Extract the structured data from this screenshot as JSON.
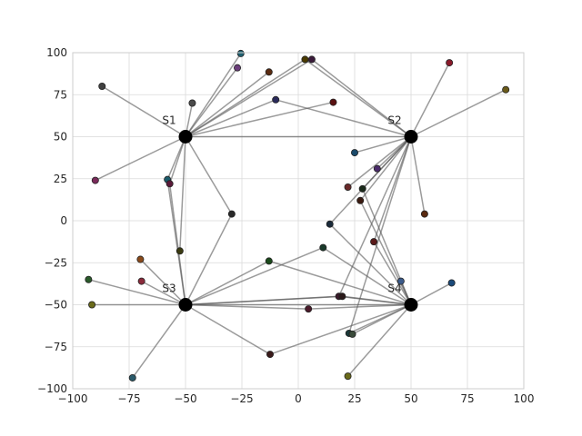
{
  "chart_data": {
    "type": "scatter",
    "title": "",
    "xlabel": "",
    "ylabel": "",
    "xlim": [
      -100,
      100
    ],
    "ylim": [
      -100,
      100
    ],
    "grid": true,
    "xticks": [
      -100,
      -75,
      -50,
      -25,
      0,
      25,
      50,
      75,
      100
    ],
    "yticks": [
      -100,
      -75,
      -50,
      -25,
      0,
      25,
      50,
      75,
      100
    ],
    "xtick_labels": [
      "−100",
      "−75",
      "−50",
      "−25",
      "0",
      "25",
      "50",
      "75",
      "100"
    ],
    "ytick_labels": [
      "−100",
      "−75",
      "−50",
      "−25",
      "0",
      "25",
      "50",
      "75",
      "100"
    ],
    "stations": [
      {
        "name": "S1",
        "x": -50,
        "y": 50
      },
      {
        "name": "S2",
        "x": 50,
        "y": 50
      },
      {
        "name": "S3",
        "x": -50,
        "y": -50
      },
      {
        "name": "S4",
        "x": 50,
        "y": -50
      }
    ],
    "points": [
      {
        "x": -25.5,
        "y": 99.5,
        "color": "#1f5f6f"
      },
      {
        "x": -27,
        "y": 91,
        "color": "#6a3d7a"
      },
      {
        "x": -13,
        "y": 88.5,
        "color": "#5a2a10"
      },
      {
        "x": 3,
        "y": 96,
        "color": "#4a3a00"
      },
      {
        "x": 6,
        "y": 96,
        "color": "#3a1a3a"
      },
      {
        "x": -87,
        "y": 80,
        "color": "#404040"
      },
      {
        "x": -47,
        "y": 70,
        "color": "#4a4a4a"
      },
      {
        "x": -10,
        "y": 72,
        "color": "#2a2a5a"
      },
      {
        "x": 15.5,
        "y": 70.5,
        "color": "#5a1010"
      },
      {
        "x": 67,
        "y": 94,
        "color": "#8a1a2a"
      },
      {
        "x": 92,
        "y": 78,
        "color": "#6a5a1a"
      },
      {
        "x": -90,
        "y": 24,
        "color": "#7a2a5a"
      },
      {
        "x": -58,
        "y": 24.5,
        "color": "#1a5a6a"
      },
      {
        "x": -57,
        "y": 22,
        "color": "#5a1a3a"
      },
      {
        "x": 25,
        "y": 40.5,
        "color": "#1a4a6a"
      },
      {
        "x": 35,
        "y": 31,
        "color": "#4a2a6a"
      },
      {
        "x": 22,
        "y": 20,
        "color": "#6a2a2a"
      },
      {
        "x": 28.5,
        "y": 19,
        "color": "#1a2a1a"
      },
      {
        "x": 27.5,
        "y": 12,
        "color": "#3a1a10"
      },
      {
        "x": 56,
        "y": 4,
        "color": "#5a2a10"
      },
      {
        "x": -29.5,
        "y": 4,
        "color": "#2a2a2a"
      },
      {
        "x": 14,
        "y": -2,
        "color": "#1a2a3a"
      },
      {
        "x": 33.5,
        "y": -12.5,
        "color": "#5a1a1a"
      },
      {
        "x": -52.5,
        "y": -18,
        "color": "#3a3a10"
      },
      {
        "x": 11,
        "y": -16,
        "color": "#1a3a2a"
      },
      {
        "x": -70,
        "y": -23,
        "color": "#8a4a1a"
      },
      {
        "x": -13,
        "y": -24,
        "color": "#1a4a1a"
      },
      {
        "x": -93,
        "y": -35,
        "color": "#2a5a2a"
      },
      {
        "x": -69.5,
        "y": -36,
        "color": "#8a2a3a"
      },
      {
        "x": 45.5,
        "y": -36,
        "color": "#3a5a8a"
      },
      {
        "x": 68,
        "y": -37,
        "color": "#1a4a7a"
      },
      {
        "x": -91.5,
        "y": -50,
        "color": "#6a6a1a"
      },
      {
        "x": 18,
        "y": -45,
        "color": "#3a1a2a"
      },
      {
        "x": 19.5,
        "y": -45,
        "color": "#2a1a1a"
      },
      {
        "x": 4.5,
        "y": -52.5,
        "color": "#4a1a2a"
      },
      {
        "x": 22.5,
        "y": -67,
        "color": "#1a3a3a"
      },
      {
        "x": 24,
        "y": -67.5,
        "color": "#3a4a3a"
      },
      {
        "x": -12.5,
        "y": -79.5,
        "color": "#3a1a1a"
      },
      {
        "x": -73.5,
        "y": -93.5,
        "color": "#2a5a6a"
      },
      {
        "x": 22,
        "y": -92.5,
        "color": "#6a6a1a"
      }
    ],
    "connections": [
      {
        "from": "S1",
        "to": [
          0,
          1,
          2,
          3,
          4,
          5,
          6,
          7,
          8,
          11,
          12,
          13,
          20,
          23
        ]
      },
      {
        "from": "S2",
        "to": [
          3,
          4,
          7,
          9,
          10,
          14,
          15,
          16,
          17,
          18,
          19,
          21,
          22,
          32,
          35
        ]
      },
      {
        "from": "S3",
        "to": [
          12,
          13,
          20,
          24,
          25,
          26,
          27,
          28,
          31,
          32,
          33,
          34,
          37,
          38
        ]
      },
      {
        "from": "S4",
        "to": [
          17,
          18,
          21,
          22,
          24,
          26,
          29,
          30,
          32,
          33,
          34,
          35,
          36,
          37,
          39
        ]
      }
    ],
    "station_links": [
      {
        "from": "S3",
        "to": "S4"
      },
      {
        "from": "S1",
        "to": "S2"
      }
    ]
  }
}
